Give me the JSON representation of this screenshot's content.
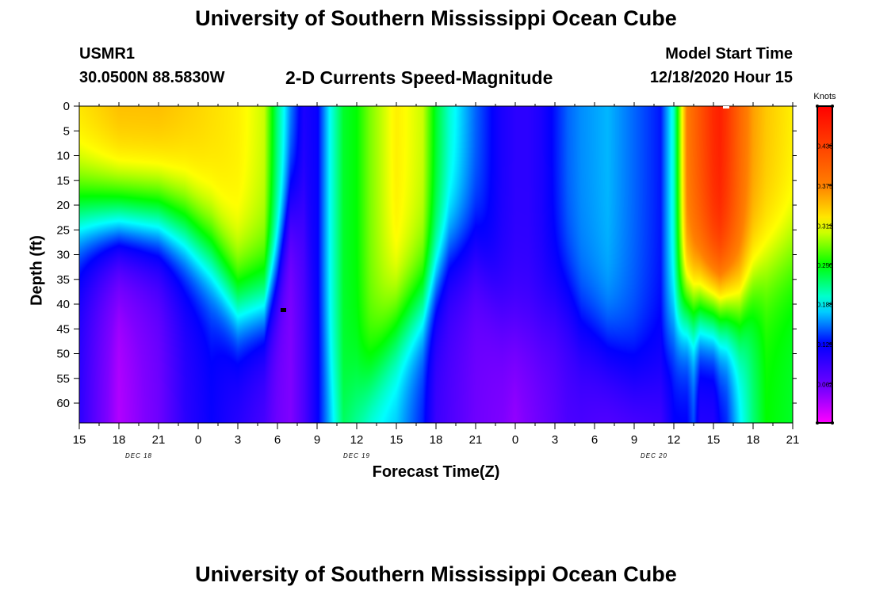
{
  "page": {
    "title_top": "University of Southern Mississippi Ocean Cube",
    "title_bottom": "University of Southern Mississippi Ocean Cube",
    "station_id": "USMR1",
    "station_coords": "30.0500N 88.5830W",
    "plot_title": "2-D Currents Speed-Magnitude",
    "model_start_label": "Model Start Time",
    "model_start_value": "12/18/2020 Hour 15"
  },
  "chart_data": {
    "type": "heatmap",
    "title": "2-D Currents Speed-Magnitude",
    "xlabel": "Forecast Time(Z)",
    "ylabel": "Depth (ft)",
    "colorbar_label": "Knots",
    "x_tick_labels": [
      "15",
      "18",
      "21",
      "0",
      "3",
      "6",
      "9",
      "12",
      "15",
      "18",
      "21",
      "0",
      "3",
      "6",
      "9",
      "12",
      "15",
      "18",
      "21"
    ],
    "date_labels": [
      {
        "text": "DEC 18",
        "tick_index": 1.5
      },
      {
        "text": "DEC 19",
        "tick_index": 7
      },
      {
        "text": "DEC 20",
        "tick_index": 14.5
      }
    ],
    "x_range_hours": [
      0,
      54
    ],
    "y_tick_labels": [
      "0",
      "5",
      "10",
      "15",
      "20",
      "25",
      "30",
      "35",
      "40",
      "45",
      "50",
      "55",
      "60"
    ],
    "y_range_ft": [
      0,
      64
    ],
    "colorbar_ticks": [
      "0.438",
      "0.375",
      "0.312",
      "0.250",
      "0.188",
      "0.125",
      "0.062"
    ],
    "colorbar_range": [
      0.0,
      0.5
    ],
    "colors": {
      "low": "#ff00ff",
      "violet": "#8000ff",
      "blue": "#0000ff",
      "cyan": "#00ffff",
      "green": "#00ff00",
      "yellow": "#ffff00",
      "orange": "#ff8000",
      "high": "#ff0000"
    },
    "time_hours": [
      0,
      3,
      6,
      8,
      10,
      12,
      14,
      15,
      16,
      17,
      18,
      19,
      20,
      21,
      22,
      24,
      26,
      27,
      28,
      30,
      32,
      33,
      34,
      35,
      36,
      37,
      38,
      40,
      42,
      44,
      45,
      46,
      46.5,
      47,
      48,
      48.5,
      49,
      50,
      51,
      52,
      54
    ],
    "surface_speed": [
      0.33,
      0.35,
      0.35,
      0.34,
      0.33,
      0.32,
      0.3,
      0.22,
      0.16,
      0.11,
      0.12,
      0.19,
      0.24,
      0.25,
      0.28,
      0.32,
      0.3,
      0.24,
      0.2,
      0.15,
      0.11,
      0.1,
      0.1,
      0.11,
      0.13,
      0.15,
      0.16,
      0.17,
      0.15,
      0.13,
      0.2,
      0.38,
      0.4,
      0.42,
      0.46,
      0.47,
      0.45,
      0.4,
      0.36,
      0.34,
      0.32
    ],
    "bottom_speed": [
      0.1,
      0.03,
      0.06,
      0.1,
      0.12,
      0.1,
      0.08,
      0.06,
      0.05,
      0.08,
      0.12,
      0.17,
      0.22,
      0.2,
      0.18,
      0.17,
      0.13,
      0.09,
      0.08,
      0.06,
      0.05,
      0.04,
      0.05,
      0.06,
      0.07,
      0.08,
      0.08,
      0.07,
      0.07,
      0.08,
      0.12,
      0.12,
      0.14,
      0.1,
      0.1,
      0.12,
      0.13,
      0.18,
      0.22,
      0.25,
      0.24
    ],
    "transition_depth_ft": [
      22,
      23,
      23,
      25,
      30,
      40,
      40,
      33,
      20,
      20,
      40,
      55,
      60,
      58,
      55,
      45,
      40,
      35,
      30,
      30,
      42,
      45,
      45,
      44,
      40,
      40,
      45,
      50,
      55,
      55,
      45,
      40,
      40,
      40,
      40,
      40,
      40,
      40,
      35,
      32,
      30
    ]
  }
}
